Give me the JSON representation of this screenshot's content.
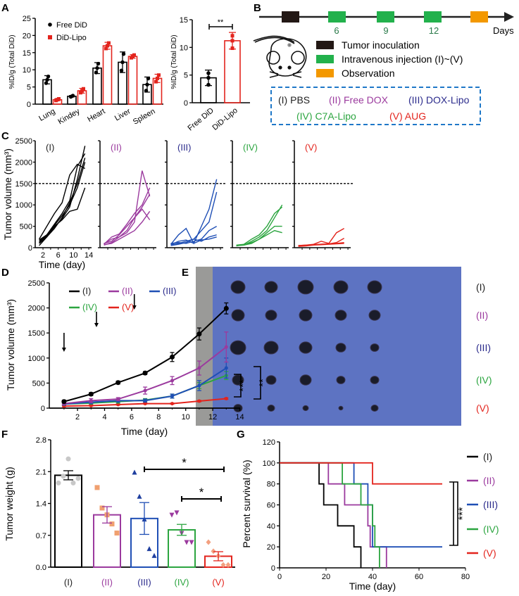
{
  "panel_labels": {
    "a": "A",
    "b": "B",
    "c": "C",
    "d": "D",
    "e": "E",
    "f": "F",
    "g": "G"
  },
  "colors": {
    "I": "#000000",
    "II": "#9b3a9e",
    "III": "#1f4fb5",
    "IV": "#2ca540",
    "V": "#e3241d",
    "free_did": "#000000",
    "did_lipo": "#e3241d",
    "tumor_inoculation": "#231815",
    "injection": "#22b14c",
    "observation": "#f39800",
    "dashed_box": "#1f78c8"
  },
  "group_labels": [
    "(I)",
    "(II)",
    "(III)",
    "(IV)",
    "(V)"
  ],
  "label_colors": [
    "#222222",
    "#9b3a9e",
    "#2b2b8c",
    "#2ca540",
    "#e3241d"
  ],
  "timeline": {
    "day_labels": [
      "6",
      "9",
      "12"
    ],
    "axis_label": "Days",
    "legend": [
      "Tumor inoculation",
      "Intravenous injection (I)~(V)",
      "Observation"
    ],
    "groups": [
      "(I) PBS",
      "(II) Free DOX",
      "(III) DOX-Lipo",
      "(IV) C7A-Lipo",
      "(V) AUG"
    ]
  },
  "photo": {
    "row_labels": [
      "(I)",
      "(II)",
      "(III)",
      "(IV)",
      "(V)"
    ]
  },
  "chart_data": [
    {
      "id": "A-organs",
      "type": "bar",
      "categories": [
        "Lung",
        "Kindey",
        "Heart",
        "Liver",
        "Spleen"
      ],
      "series": [
        {
          "name": "Free DiD",
          "values": [
            7.1,
            2.3,
            10.5,
            12.2,
            5.7
          ],
          "errors": [
            1.2,
            0.2,
            1.6,
            3.0,
            2.2
          ]
        },
        {
          "name": "DiD-Lipo",
          "values": [
            1.3,
            3.9,
            17.0,
            13.9,
            7.5
          ],
          "errors": [
            0.3,
            0.7,
            1.0,
            0.5,
            1.2
          ]
        }
      ],
      "ylabel": "%ID/g (Total DiD)",
      "ylim": [
        0,
        25
      ],
      "yticks": [
        0,
        5,
        10,
        15,
        20,
        25
      ],
      "legend": "top-left"
    },
    {
      "id": "A-tumor",
      "type": "bar",
      "categories": [
        "Free DiD",
        "DiD-Lipo"
      ],
      "values": [
        4.5,
        11.2
      ],
      "errors": [
        1.4,
        1.5
      ],
      "ylabel": "%ID/g (Total DiD)",
      "ylim": [
        0,
        15
      ],
      "yticks": [
        0,
        5,
        10,
        15
      ],
      "significance": "**"
    },
    {
      "id": "C-individual",
      "type": "line",
      "ylabel": "Tumor volume (mm³)",
      "xlabel": "Time (day)",
      "ylim": [
        0,
        2500
      ],
      "yticks": [
        0,
        500,
        1000,
        1500,
        2000,
        2500
      ],
      "xticks": [
        2,
        6,
        10,
        14
      ],
      "threshold": 1500,
      "x": [
        1,
        3,
        5,
        7,
        9,
        11,
        13
      ],
      "panels": [
        {
          "name": "(I)",
          "curves": [
            [
              150,
              300,
              550,
              800,
              1100,
              1900,
              2200
            ],
            [
              100,
              250,
              450,
              700,
              1050,
              1500,
              2100
            ],
            [
              200,
              500,
              800,
              1050,
              1700,
              1950,
              1850
            ],
            [
              50,
              250,
              500,
              650,
              850,
              900,
              1400
            ],
            [
              120,
              280,
              520,
              750,
              1000,
              1400,
              2000
            ],
            [
              180,
              300,
              480,
              680,
              950,
              1600,
              2380
            ]
          ]
        },
        {
          "name": "(II)",
          "curves": [
            [
              80,
              250,
              320,
              550,
              800,
              1000,
              1400
            ],
            [
              100,
              150,
              300,
              500,
              700,
              950,
              1250
            ],
            [
              60,
              120,
              250,
              350,
              600,
              1800,
              1200
            ],
            [
              70,
              100,
              200,
              300,
              400,
              600,
              850
            ],
            [
              90,
              200,
              250,
              400,
              700,
              900,
              650
            ]
          ]
        },
        {
          "name": "(III)",
          "curves": [
            [
              80,
              300,
              450,
              100,
              500,
              900,
              1600
            ],
            [
              60,
              100,
              150,
              200,
              400,
              600,
              1300
            ],
            [
              100,
              120,
              100,
              150,
              200,
              400,
              500
            ],
            [
              50,
              80,
              120,
              200,
              150,
              250,
              300
            ],
            [
              70,
              150,
              180,
              100,
              180,
              200,
              250
            ]
          ]
        },
        {
          "name": "(IV)",
          "curves": [
            [
              50,
              60,
              150,
              250,
              400,
              700,
              1000
            ],
            [
              60,
              80,
              200,
              300,
              500,
              800,
              950
            ],
            [
              40,
              70,
              120,
              200,
              350,
              500,
              500
            ],
            [
              50,
              60,
              100,
              200,
              300,
              400,
              350
            ]
          ]
        },
        {
          "name": "(V)",
          "curves": [
            [
              50,
              60,
              80,
              150,
              100,
              350,
              450
            ],
            [
              40,
              50,
              70,
              80,
              90,
              120,
              220
            ],
            [
              50,
              60,
              70,
              80,
              90,
              100,
              120
            ],
            [
              30,
              40,
              60,
              70,
              80,
              90,
              100
            ]
          ]
        }
      ]
    },
    {
      "id": "D-mean",
      "type": "line",
      "ylabel": "Tumor volume (mm³)",
      "xlabel": "Time (day)",
      "ylim": [
        0,
        2500
      ],
      "yticks": [
        0,
        500,
        1000,
        1500,
        2000,
        2500
      ],
      "xlim": [
        0,
        14
      ],
      "xticks": [
        2,
        4,
        6,
        8,
        10,
        12,
        14
      ],
      "x": [
        1,
        3,
        5,
        7,
        9,
        11,
        13
      ],
      "injection_days": [
        1,
        3.4,
        6.2
      ],
      "series": [
        {
          "name": "(I)",
          "values": [
            130,
            280,
            510,
            700,
            1020,
            1480,
            1990
          ],
          "errors": [
            30,
            30,
            30,
            30,
            90,
            120,
            110
          ]
        },
        {
          "name": "(II)",
          "values": [
            90,
            150,
            180,
            350,
            550,
            800,
            1220
          ],
          "errors": [
            20,
            40,
            30,
            70,
            80,
            140,
            300
          ]
        },
        {
          "name": "(III)",
          "values": [
            80,
            120,
            150,
            150,
            240,
            450,
            800
          ],
          "errors": [
            20,
            30,
            30,
            30,
            40,
            100,
            200
          ]
        },
        {
          "name": "(IV)",
          "values": [
            80,
            100,
            130,
            160,
            240,
            450,
            650
          ],
          "errors": [
            20,
            20,
            30,
            30,
            40,
            60,
            80
          ]
        },
        {
          "name": "(V)",
          "values": [
            40,
            50,
            70,
            90,
            90,
            140,
            190
          ],
          "errors": [
            10,
            10,
            10,
            10,
            10,
            15,
            15
          ]
        }
      ],
      "significance": [
        "***",
        "**"
      ],
      "legend": "top-left"
    },
    {
      "id": "F-weight",
      "type": "bar",
      "categories": [
        "(I)",
        "(II)",
        "(III)",
        "(IV)",
        "(V)"
      ],
      "values": [
        2.02,
        1.15,
        1.07,
        0.82,
        0.24
      ],
      "errors": [
        0.1,
        0.18,
        0.35,
        0.12,
        0.1
      ],
      "points": [
        [
          1.85,
          2.0,
          2.38,
          1.85,
          1.95
        ],
        [
          1.75,
          1.3,
          1.15,
          0.95,
          0.75
        ],
        [
          2.08,
          1.55,
          1.05,
          0.4,
          0.25
        ],
        [
          1.15,
          1.2,
          0.75,
          0.55,
          0.55
        ],
        [
          0.55,
          0.35,
          0.25,
          0.05,
          0.05
        ]
      ],
      "ylabel": "Tumor weight (g)",
      "ylim": [
        0,
        2.8
      ],
      "yticks": [
        "0.0",
        "0.7",
        "1.4",
        "2.1",
        "2.8"
      ],
      "significance": [
        {
          "from": "(III)",
          "to": "(V)",
          "label": "*"
        },
        {
          "from": "(IV)",
          "to": "(V)",
          "label": "*"
        }
      ]
    },
    {
      "id": "G-survival",
      "type": "line",
      "ylabel": "Percent survival (%)",
      "xlabel": "Time (day)",
      "ylim": [
        0,
        120
      ],
      "yticks": [
        0,
        20,
        40,
        60,
        80,
        100,
        120
      ],
      "xlim": [
        0,
        80
      ],
      "xticks": [
        0,
        20,
        40,
        60,
        80
      ],
      "series": [
        {
          "name": "(I)",
          "steps": [
            [
              0,
              100
            ],
            [
              17,
              80
            ],
            [
              19,
              60
            ],
            [
              25,
              40
            ],
            [
              32,
              20
            ],
            [
              35,
              0
            ]
          ]
        },
        {
          "name": "(II)",
          "steps": [
            [
              0,
              100
            ],
            [
              21,
              80
            ],
            [
              28,
              60
            ],
            [
              38,
              40
            ],
            [
              39,
              20
            ],
            [
              46,
              0
            ]
          ]
        },
        {
          "name": "(III)",
          "steps": [
            [
              0,
              100
            ],
            [
              32,
              80
            ],
            [
              38,
              60
            ],
            [
              40,
              20
            ],
            [
              70,
              20
            ]
          ]
        },
        {
          "name": "(IV)",
          "steps": [
            [
              0,
              100
            ],
            [
              27,
              80
            ],
            [
              35,
              60
            ],
            [
              40,
              40
            ],
            [
              41,
              20
            ],
            [
              43,
              0
            ]
          ]
        },
        {
          "name": "(V)",
          "steps": [
            [
              0,
              100
            ],
            [
              40,
              80
            ],
            [
              70,
              80
            ]
          ]
        }
      ],
      "significance": "***",
      "legend": "right"
    }
  ]
}
